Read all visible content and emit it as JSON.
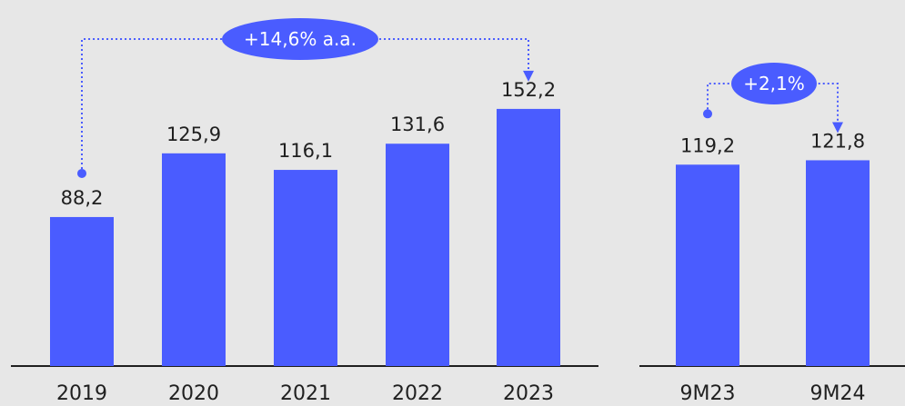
{
  "colors": {
    "bar": "#4a5cff",
    "background": "#e7e7e7",
    "text": "#1f1f1f",
    "pill_text": "#ffffff"
  },
  "chart_data": [
    {
      "type": "bar",
      "categories": [
        "2019",
        "2020",
        "2021",
        "2022",
        "2023"
      ],
      "values": [
        88.2,
        125.9,
        116.1,
        131.6,
        152.2
      ],
      "value_labels": [
        "88,2",
        "125,9",
        "116,1",
        "131,6",
        "152,2"
      ],
      "growth_label": "+14,6% a.a.",
      "growth_from": "2019",
      "growth_to": "2023"
    },
    {
      "type": "bar",
      "categories": [
        "9M23",
        "9M24"
      ],
      "values": [
        119.2,
        121.8
      ],
      "value_labels": [
        "119,2",
        "121,8"
      ],
      "growth_label": "+2,1%",
      "growth_from": "9M23",
      "growth_to": "9M24"
    }
  ]
}
